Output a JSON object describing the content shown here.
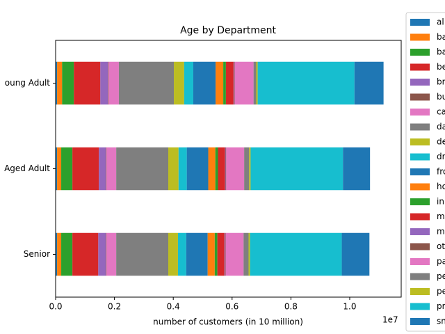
{
  "chart_data": {
    "type": "stacked-barh",
    "title": "Age by Department",
    "xlabel": "number of customers (in 10 million)",
    "x_offset_label": "1e7",
    "categories": [
      "oung Adult",
      "Aged Adult",
      "Senior"
    ],
    "xlim": [
      0,
      11750000
    ],
    "xticks": [
      {
        "value": 0,
        "label": "0.0"
      },
      {
        "value": 2000000,
        "label": "0.2"
      },
      {
        "value": 4000000,
        "label": "0.4"
      },
      {
        "value": 6000000,
        "label": "0.6"
      },
      {
        "value": 8000000,
        "label": "0.8"
      },
      {
        "value": 10000000,
        "label": "1.0"
      }
    ],
    "series": [
      {
        "name": "al",
        "color": "#1f77b4",
        "values": [
          50000,
          50000,
          50000
        ]
      },
      {
        "name": "ba",
        "color": "#ff7f0e",
        "values": [
          170000,
          140000,
          140000
        ]
      },
      {
        "name": "ba",
        "color": "#2ca02c",
        "values": [
          400000,
          380000,
          380000
        ]
      },
      {
        "name": "be",
        "color": "#d62728",
        "values": [
          900000,
          900000,
          880000
        ]
      },
      {
        "name": "br",
        "color": "#9467bd",
        "values": [
          260000,
          240000,
          260000
        ]
      },
      {
        "name": "bu",
        "color": "#8c564b",
        "values": [
          20000,
          20000,
          20000
        ]
      },
      {
        "name": "ca",
        "color": "#e377c2",
        "values": [
          350000,
          330000,
          330000
        ]
      },
      {
        "name": "da",
        "color": "#7f7f7f",
        "values": [
          1870000,
          1770000,
          1770000
        ]
      },
      {
        "name": "de",
        "color": "#bcbd22",
        "values": [
          350000,
          350000,
          330000
        ]
      },
      {
        "name": "dr",
        "color": "#17becf",
        "values": [
          310000,
          280000,
          280000
        ]
      },
      {
        "name": "fro",
        "color": "#1f77b4",
        "values": [
          760000,
          730000,
          730000
        ]
      },
      {
        "name": "ho",
        "color": "#ff7f0e",
        "values": [
          260000,
          240000,
          240000
        ]
      },
      {
        "name": "in",
        "color": "#2ca02c",
        "values": [
          90000,
          90000,
          90000
        ]
      },
      {
        "name": "m",
        "color": "#d62728",
        "values": [
          260000,
          240000,
          240000
        ]
      },
      {
        "name": "m",
        "color": "#9467bd",
        "values": [
          20000,
          20000,
          20000
        ]
      },
      {
        "name": "ot",
        "color": "#8c564b",
        "values": [
          20000,
          20000,
          20000
        ]
      },
      {
        "name": "pa",
        "color": "#e377c2",
        "values": [
          640000,
          610000,
          610000
        ]
      },
      {
        "name": "pe",
        "color": "#7f7f7f",
        "values": [
          90000,
          170000,
          170000
        ]
      },
      {
        "name": "pe",
        "color": "#bcbd22",
        "values": [
          50000,
          50000,
          50000
        ]
      },
      {
        "name": "pr",
        "color": "#17becf",
        "values": [
          3290000,
          3140000,
          3120000
        ]
      },
      {
        "name": "sn",
        "color": "#1f77b4",
        "values": [
          990000,
          920000,
          940000
        ]
      }
    ]
  }
}
